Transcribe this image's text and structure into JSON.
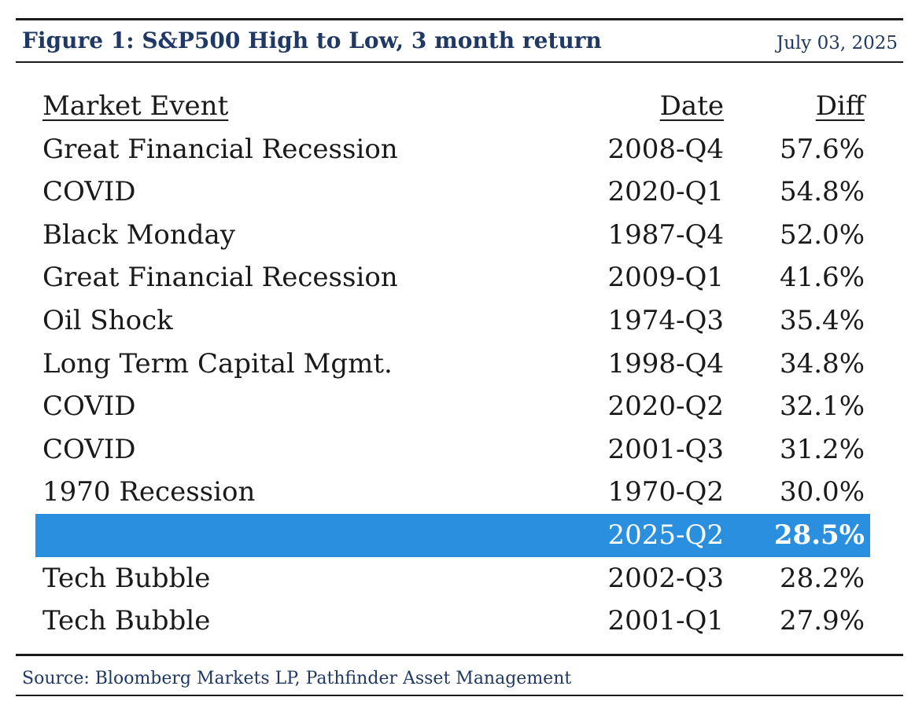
{
  "header": {
    "title": "Figure 1: S&P500 High to Low, 3 month return",
    "date": "July 03, 2025"
  },
  "chart_data": {
    "type": "table",
    "columns": [
      "Market Event",
      "Date",
      "Diff"
    ],
    "rows": [
      {
        "event": "Great Financial Recession",
        "date": "2008-Q4",
        "diff": "57.6%"
      },
      {
        "event": "COVID",
        "date": "2020-Q1",
        "diff": "54.8%"
      },
      {
        "event": "Black Monday",
        "date": "1987-Q4",
        "diff": "52.0%"
      },
      {
        "event": "Great Financial Recession",
        "date": "2009-Q1",
        "diff": "41.6%"
      },
      {
        "event": "Oil Shock",
        "date": "1974-Q3",
        "diff": "35.4%"
      },
      {
        "event": "Long Term Capital Mgmt.",
        "date": "1998-Q4",
        "diff": "34.8%"
      },
      {
        "event": "COVID",
        "date": "2020-Q2",
        "diff": "32.1%"
      },
      {
        "event": "COVID",
        "date": "2001-Q3",
        "diff": "31.2%"
      },
      {
        "event": "1970 Recession",
        "date": "1970-Q2",
        "diff": "30.0%"
      },
      {
        "event": "",
        "date": "2025-Q2",
        "diff": "28.5%",
        "highlighted": true
      },
      {
        "event": "Tech Bubble",
        "date": "2002-Q3",
        "diff": "28.2%"
      },
      {
        "event": "Tech Bubble",
        "date": "2001-Q1",
        "diff": "27.9%"
      }
    ],
    "highlight_color": "#2a8fdf"
  },
  "footer": {
    "source": "Source: Bloomberg Markets LP, Pathfinder Asset Management"
  },
  "colors": {
    "title": "#1f3864",
    "text": "#1a1a1a",
    "highlight": "#2a8fdf"
  }
}
